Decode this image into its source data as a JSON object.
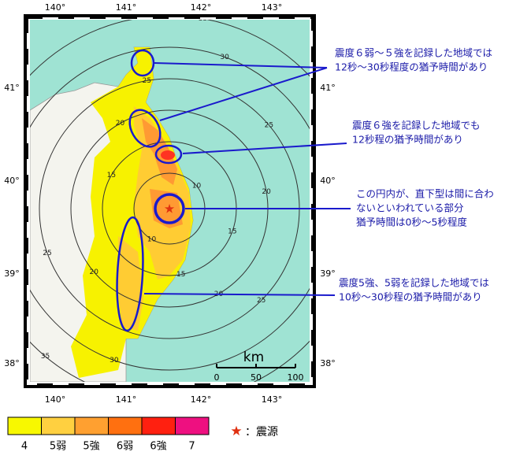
{
  "axes": {
    "top": [
      "140°",
      "141°",
      "142°",
      "143°"
    ],
    "bottom": [
      "140°",
      "141°",
      "142°",
      "143°"
    ],
    "left": [
      "41°",
      "40°",
      "39°",
      "38°"
    ],
    "right": [
      "41°",
      "40°",
      "39°",
      "38°"
    ]
  },
  "contours": [
    "10",
    "15",
    "20",
    "25",
    "30",
    "35"
  ],
  "annotations": [
    {
      "lines": [
        "震度６弱～５強を記録した地域では",
        "12秒～30秒程度の猶予時間があり"
      ]
    },
    {
      "lines": [
        "震度６強を記録した地域でも",
        "12秒程の猶予時間があり"
      ]
    },
    {
      "lines": [
        "この円内が、直下型は間に合わ",
        "ないといわれている部分",
        "猶予時間は0秒～5秒程度"
      ]
    },
    {
      "lines": [
        "震度5強、5弱を記録した地域では",
        "10秒～30秒程の猶予時間があり"
      ]
    }
  ],
  "scale": {
    "unit": "km",
    "ticks": [
      "0",
      "50",
      "100"
    ]
  },
  "legend": {
    "items": [
      "4",
      "5弱",
      "5強",
      "6弱",
      "6強",
      "7"
    ],
    "epicenter": "：震源"
  }
}
